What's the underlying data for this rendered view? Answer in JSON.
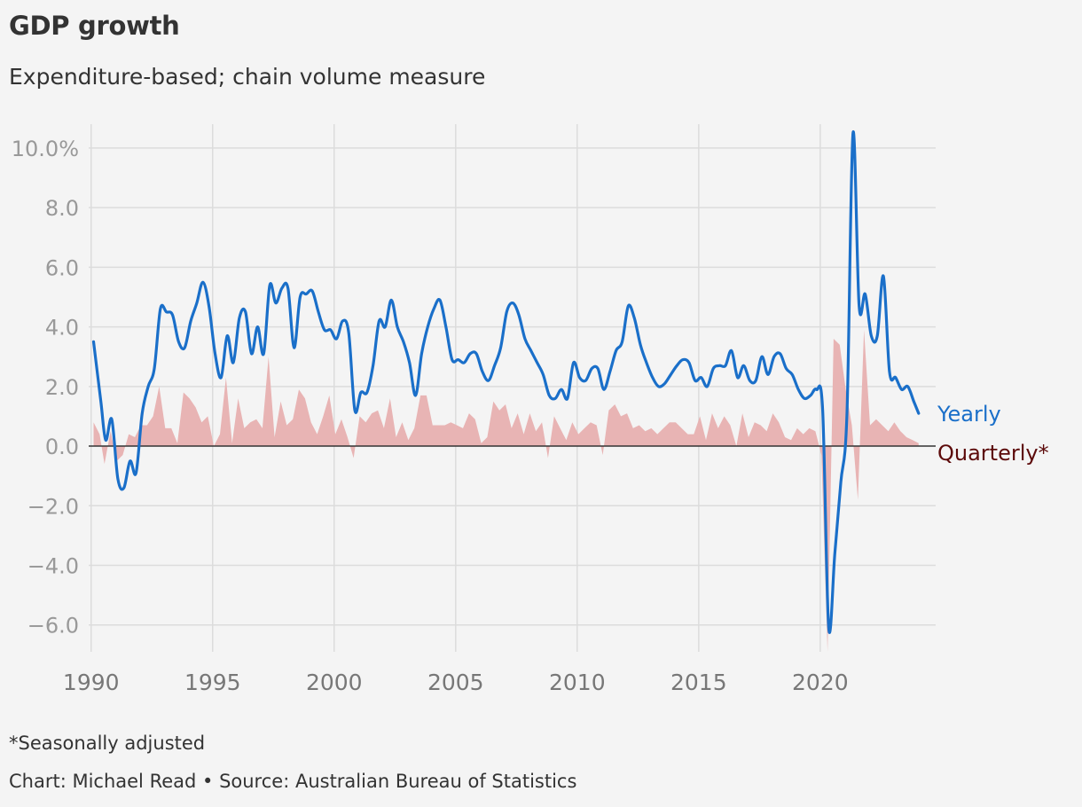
{
  "title": "GDP growth",
  "subtitle": "Expenditure-based; chain volume measure",
  "footnote": "*Seasonally adjusted",
  "credit": "Chart: Michael Read • Source: Australian Bureau of Statistics",
  "colors": {
    "yearly": "#1a6fc9",
    "quarterly_fill": "#e8b4b4",
    "quarterly_label": "#5c0a0a",
    "grid": "#dcdcdc",
    "zero_line": "#333333",
    "background": "#f4f4f4"
  },
  "chart_data": {
    "type": "area",
    "grid": true,
    "x_ticks": [
      "1990",
      "1995",
      "2000",
      "2005",
      "2010",
      "2015",
      "2020"
    ],
    "y_ticks": [
      "10.0%",
      "8.0",
      "6.0",
      "4.0",
      "2.0",
      "0.0",
      "−2.0",
      "−4.0",
      "−6.0"
    ],
    "xlim": [
      1989.9,
      2024.75
    ],
    "ylim": [
      -6.9,
      10.8
    ],
    "series": [
      {
        "name": "Yearly",
        "kind": "line",
        "points": [
          [
            1990.1,
            3.5
          ],
          [
            1990.4,
            1.5
          ],
          [
            1990.6,
            0.2
          ],
          [
            1990.85,
            0.9
          ],
          [
            1991.1,
            -1.1
          ],
          [
            1991.35,
            -1.4
          ],
          [
            1991.6,
            -0.5
          ],
          [
            1991.85,
            -0.9
          ],
          [
            1992.1,
            1.1
          ],
          [
            1992.35,
            2.0
          ],
          [
            1992.6,
            2.6
          ],
          [
            1992.85,
            4.6
          ],
          [
            1993.1,
            4.5
          ],
          [
            1993.35,
            4.4
          ],
          [
            1993.6,
            3.5
          ],
          [
            1993.85,
            3.3
          ],
          [
            1994.1,
            4.2
          ],
          [
            1994.35,
            4.8
          ],
          [
            1994.6,
            5.5
          ],
          [
            1994.85,
            4.7
          ],
          [
            1995.1,
            3.1
          ],
          [
            1995.35,
            2.3
          ],
          [
            1995.6,
            3.7
          ],
          [
            1995.85,
            2.8
          ],
          [
            1996.1,
            4.3
          ],
          [
            1996.35,
            4.5
          ],
          [
            1996.6,
            3.1
          ],
          [
            1996.85,
            4.0
          ],
          [
            1997.1,
            3.1
          ],
          [
            1997.35,
            5.4
          ],
          [
            1997.6,
            4.8
          ],
          [
            1997.85,
            5.3
          ],
          [
            1998.1,
            5.3
          ],
          [
            1998.35,
            3.3
          ],
          [
            1998.6,
            5.0
          ],
          [
            1998.85,
            5.1
          ],
          [
            1999.1,
            5.2
          ],
          [
            1999.35,
            4.5
          ],
          [
            1999.6,
            3.9
          ],
          [
            1999.85,
            3.9
          ],
          [
            2000.1,
            3.6
          ],
          [
            2000.35,
            4.2
          ],
          [
            2000.6,
            3.8
          ],
          [
            2000.85,
            1.2
          ],
          [
            2001.1,
            1.8
          ],
          [
            2001.35,
            1.8
          ],
          [
            2001.6,
            2.7
          ],
          [
            2001.85,
            4.2
          ],
          [
            2002.1,
            4.0
          ],
          [
            2002.35,
            4.9
          ],
          [
            2002.6,
            4.0
          ],
          [
            2002.85,
            3.5
          ],
          [
            2003.1,
            2.8
          ],
          [
            2003.35,
            1.7
          ],
          [
            2003.6,
            3.1
          ],
          [
            2003.85,
            4.0
          ],
          [
            2004.1,
            4.6
          ],
          [
            2004.35,
            4.9
          ],
          [
            2004.6,
            4.0
          ],
          [
            2004.85,
            2.9
          ],
          [
            2005.1,
            2.9
          ],
          [
            2005.35,
            2.8
          ],
          [
            2005.6,
            3.1
          ],
          [
            2005.85,
            3.1
          ],
          [
            2006.1,
            2.5
          ],
          [
            2006.35,
            2.2
          ],
          [
            2006.6,
            2.7
          ],
          [
            2006.85,
            3.3
          ],
          [
            2007.1,
            4.5
          ],
          [
            2007.35,
            4.8
          ],
          [
            2007.6,
            4.4
          ],
          [
            2007.85,
            3.6
          ],
          [
            2008.1,
            3.2
          ],
          [
            2008.35,
            2.8
          ],
          [
            2008.6,
            2.4
          ],
          [
            2008.85,
            1.7
          ],
          [
            2009.1,
            1.6
          ],
          [
            2009.35,
            1.9
          ],
          [
            2009.6,
            1.6
          ],
          [
            2009.85,
            2.8
          ],
          [
            2010.1,
            2.3
          ],
          [
            2010.35,
            2.2
          ],
          [
            2010.6,
            2.6
          ],
          [
            2010.85,
            2.6
          ],
          [
            2011.1,
            1.9
          ],
          [
            2011.35,
            2.5
          ],
          [
            2011.6,
            3.2
          ],
          [
            2011.85,
            3.5
          ],
          [
            2012.1,
            4.7
          ],
          [
            2012.35,
            4.3
          ],
          [
            2012.6,
            3.4
          ],
          [
            2012.85,
            2.8
          ],
          [
            2013.1,
            2.3
          ],
          [
            2013.35,
            2.0
          ],
          [
            2013.6,
            2.1
          ],
          [
            2013.85,
            2.4
          ],
          [
            2014.1,
            2.7
          ],
          [
            2014.35,
            2.9
          ],
          [
            2014.6,
            2.8
          ],
          [
            2014.85,
            2.2
          ],
          [
            2015.1,
            2.3
          ],
          [
            2015.35,
            2.0
          ],
          [
            2015.6,
            2.6
          ],
          [
            2015.85,
            2.7
          ],
          [
            2016.1,
            2.7
          ],
          [
            2016.35,
            3.2
          ],
          [
            2016.6,
            2.3
          ],
          [
            2016.85,
            2.7
          ],
          [
            2017.1,
            2.2
          ],
          [
            2017.35,
            2.2
          ],
          [
            2017.6,
            3.0
          ],
          [
            2017.85,
            2.4
          ],
          [
            2018.1,
            3.0
          ],
          [
            2018.35,
            3.1
          ],
          [
            2018.6,
            2.6
          ],
          [
            2018.85,
            2.4
          ],
          [
            2019.1,
            1.9
          ],
          [
            2019.35,
            1.6
          ],
          [
            2019.6,
            1.7
          ],
          [
            2019.85,
            1.9
          ],
          [
            2020.1,
            1.2
          ],
          [
            2020.35,
            -6.1
          ],
          [
            2020.6,
            -3.6
          ],
          [
            2020.85,
            -1.2
          ],
          [
            2021.1,
            1.1
          ],
          [
            2021.35,
            10.5
          ],
          [
            2021.6,
            4.7
          ],
          [
            2021.85,
            5.1
          ],
          [
            2022.1,
            3.7
          ],
          [
            2022.35,
            3.7
          ],
          [
            2022.6,
            5.7
          ],
          [
            2022.85,
            2.5
          ],
          [
            2023.1,
            2.3
          ],
          [
            2023.35,
            1.9
          ],
          [
            2023.6,
            2.0
          ],
          [
            2023.85,
            1.5
          ],
          [
            2024.05,
            1.1
          ]
        ]
      },
      {
        "name": "Quarterly*",
        "kind": "area",
        "points": [
          [
            1990.1,
            0.8
          ],
          [
            1990.35,
            0.4
          ],
          [
            1990.55,
            -0.6
          ],
          [
            1990.8,
            0.5
          ],
          [
            1991.05,
            -0.5
          ],
          [
            1991.3,
            -0.3
          ],
          [
            1991.55,
            0.4
          ],
          [
            1991.8,
            0.3
          ],
          [
            1992.05,
            0.7
          ],
          [
            1992.3,
            0.7
          ],
          [
            1992.55,
            1.0
          ],
          [
            1992.8,
            2.0
          ],
          [
            1993.05,
            0.6
          ],
          [
            1993.3,
            0.6
          ],
          [
            1993.55,
            0.1
          ],
          [
            1993.8,
            1.8
          ],
          [
            1994.05,
            1.6
          ],
          [
            1994.3,
            1.3
          ],
          [
            1994.55,
            0.8
          ],
          [
            1994.8,
            1.0
          ],
          [
            1995.05,
            0.0
          ],
          [
            1995.3,
            0.4
          ],
          [
            1995.55,
            2.3
          ],
          [
            1995.8,
            0.1
          ],
          [
            1996.05,
            1.6
          ],
          [
            1996.3,
            0.6
          ],
          [
            1996.55,
            0.8
          ],
          [
            1996.8,
            0.9
          ],
          [
            1997.05,
            0.6
          ],
          [
            1997.3,
            3.0
          ],
          [
            1997.55,
            0.3
          ],
          [
            1997.8,
            1.5
          ],
          [
            1998.05,
            0.7
          ],
          [
            1998.3,
            0.9
          ],
          [
            1998.55,
            1.9
          ],
          [
            1998.8,
            1.6
          ],
          [
            1999.05,
            0.8
          ],
          [
            1999.3,
            0.4
          ],
          [
            1999.55,
            1.0
          ],
          [
            1999.8,
            1.7
          ],
          [
            2000.05,
            0.4
          ],
          [
            2000.3,
            0.9
          ],
          [
            2000.55,
            0.3
          ],
          [
            2000.8,
            -0.4
          ],
          [
            2001.05,
            1.0
          ],
          [
            2001.3,
            0.8
          ],
          [
            2001.55,
            1.1
          ],
          [
            2001.8,
            1.2
          ],
          [
            2002.05,
            0.6
          ],
          [
            2002.3,
            1.6
          ],
          [
            2002.55,
            0.3
          ],
          [
            2002.8,
            0.8
          ],
          [
            2003.05,
            0.2
          ],
          [
            2003.3,
            0.6
          ],
          [
            2003.55,
            1.7
          ],
          [
            2003.8,
            1.7
          ],
          [
            2004.05,
            0.7
          ],
          [
            2004.3,
            0.7
          ],
          [
            2004.55,
            0.7
          ],
          [
            2004.8,
            0.8
          ],
          [
            2005.05,
            0.7
          ],
          [
            2005.3,
            0.6
          ],
          [
            2005.55,
            1.1
          ],
          [
            2005.8,
            0.9
          ],
          [
            2006.05,
            0.1
          ],
          [
            2006.3,
            0.3
          ],
          [
            2006.55,
            1.5
          ],
          [
            2006.8,
            1.2
          ],
          [
            2007.05,
            1.4
          ],
          [
            2007.3,
            0.6
          ],
          [
            2007.55,
            1.1
          ],
          [
            2007.8,
            0.4
          ],
          [
            2008.05,
            1.1
          ],
          [
            2008.3,
            0.5
          ],
          [
            2008.55,
            0.8
          ],
          [
            2008.8,
            -0.4
          ],
          [
            2009.05,
            1.0
          ],
          [
            2009.3,
            0.6
          ],
          [
            2009.55,
            0.2
          ],
          [
            2009.8,
            0.8
          ],
          [
            2010.05,
            0.4
          ],
          [
            2010.3,
            0.6
          ],
          [
            2010.55,
            0.8
          ],
          [
            2010.8,
            0.7
          ],
          [
            2011.05,
            -0.3
          ],
          [
            2011.3,
            1.2
          ],
          [
            2011.55,
            1.4
          ],
          [
            2011.8,
            1.0
          ],
          [
            2012.05,
            1.1
          ],
          [
            2012.3,
            0.6
          ],
          [
            2012.55,
            0.7
          ],
          [
            2012.8,
            0.5
          ],
          [
            2013.05,
            0.6
          ],
          [
            2013.3,
            0.4
          ],
          [
            2013.55,
            0.6
          ],
          [
            2013.8,
            0.8
          ],
          [
            2014.05,
            0.8
          ],
          [
            2014.3,
            0.6
          ],
          [
            2014.55,
            0.4
          ],
          [
            2014.8,
            0.4
          ],
          [
            2015.05,
            1.0
          ],
          [
            2015.3,
            0.2
          ],
          [
            2015.55,
            1.1
          ],
          [
            2015.8,
            0.6
          ],
          [
            2016.05,
            1.0
          ],
          [
            2016.3,
            0.7
          ],
          [
            2016.55,
            0.0
          ],
          [
            2016.8,
            1.1
          ],
          [
            2017.05,
            0.3
          ],
          [
            2017.3,
            0.8
          ],
          [
            2017.55,
            0.7
          ],
          [
            2017.8,
            0.5
          ],
          [
            2018.05,
            1.1
          ],
          [
            2018.3,
            0.8
          ],
          [
            2018.55,
            0.3
          ],
          [
            2018.8,
            0.2
          ],
          [
            2019.05,
            0.6
          ],
          [
            2019.3,
            0.4
          ],
          [
            2019.55,
            0.6
          ],
          [
            2019.8,
            0.5
          ],
          [
            2020.05,
            -0.3
          ],
          [
            2020.3,
            -6.9
          ],
          [
            2020.55,
            3.6
          ],
          [
            2020.8,
            3.4
          ],
          [
            2021.05,
            1.9
          ],
          [
            2021.3,
            0.7
          ],
          [
            2021.55,
            -1.8
          ],
          [
            2021.8,
            3.9
          ],
          [
            2022.05,
            0.7
          ],
          [
            2022.3,
            0.9
          ],
          [
            2022.55,
            0.7
          ],
          [
            2022.8,
            0.5
          ],
          [
            2023.05,
            0.8
          ],
          [
            2023.3,
            0.5
          ],
          [
            2023.55,
            0.3
          ],
          [
            2023.8,
            0.2
          ],
          [
            2024.05,
            0.1
          ]
        ]
      }
    ]
  }
}
